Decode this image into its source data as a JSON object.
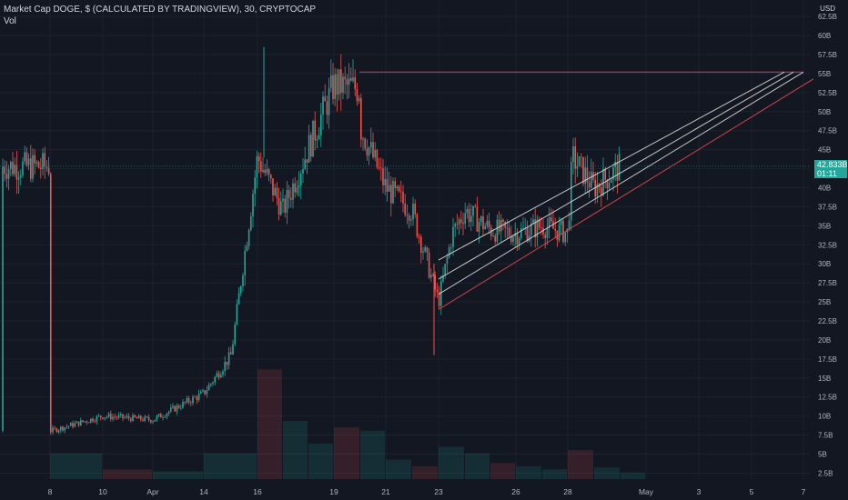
{
  "header": {
    "title": "Market Cap DOGE, $ (CALCULATED BY TRADINGVIEW), 30, CRYPTOCAP",
    "volume_label": "Vol",
    "currency": "USD"
  },
  "price_tag": {
    "value": "42.833B",
    "countdown": "01:11",
    "color": "#26a69a"
  },
  "colors": {
    "background": "#131722",
    "grid": "#1e222d",
    "up": "#26a69a",
    "down": "#ef5350",
    "trend_red": "#e04b4b",
    "trend_white": "#d8d8d8",
    "current_line": "#26a69a"
  },
  "chart_data": {
    "type": "candlestick",
    "y_unit": "B",
    "ylim": [
      0,
      63
    ],
    "y_ticks": [
      "2.5B",
      "5B",
      "7.5B",
      "10B",
      "12.5B",
      "15B",
      "17.5B",
      "20B",
      "22.5B",
      "25B",
      "27.5B",
      "30B",
      "32.5B",
      "35B",
      "37.5B",
      "40B",
      "42.5B",
      "45B",
      "47.5B",
      "50B",
      "52.5B",
      "55B",
      "57.5B",
      "60B",
      "62.5B"
    ],
    "x_ticks": [
      "8",
      "10",
      "Apr",
      "14",
      "16",
      "19",
      "21",
      "23",
      "26",
      "28",
      "May",
      "3",
      "5",
      "7"
    ],
    "price_path": [
      [
        "8",
        8.0
      ],
      [
        "10",
        10.0
      ],
      [
        "Apr",
        9.5
      ],
      [
        "14",
        13.0
      ],
      [
        "15",
        18.0
      ],
      [
        "16",
        44.0
      ],
      [
        "17",
        37.0
      ],
      [
        "19",
        53.5
      ],
      [
        "19.5",
        53.0
      ],
      [
        "20",
        48.0
      ],
      [
        "21",
        40.0
      ],
      [
        "22",
        37.0
      ],
      [
        "23",
        25.0
      ],
      [
        "23.5",
        34.0
      ],
      [
        "24",
        37.0
      ],
      [
        "25",
        34.5
      ],
      [
        "26",
        34.0
      ],
      [
        "27",
        35.0
      ],
      [
        "28",
        34.0
      ],
      [
        "28.2",
        44.0
      ],
      [
        "29",
        40.0
      ],
      [
        "30",
        42.8
      ]
    ],
    "spike_high": 58.5,
    "spike_low": 18.0,
    "current_value": 42.833,
    "volume": [
      [
        "8",
        4.0
      ],
      [
        "10",
        1.5
      ],
      [
        "Apr",
        1.2
      ],
      [
        "14",
        4.0
      ],
      [
        "16",
        17.0
      ],
      [
        "17",
        9.0
      ],
      [
        "18",
        5.5
      ],
      [
        "19",
        8.0
      ],
      [
        "20",
        7.5
      ],
      [
        "21",
        3.0
      ],
      [
        "22",
        2.0
      ],
      [
        "23",
        5.0
      ],
      [
        "24",
        4.0
      ],
      [
        "25",
        2.5
      ],
      [
        "26",
        2.0
      ],
      [
        "27",
        1.5
      ],
      [
        "28",
        4.5
      ],
      [
        "29",
        1.8
      ],
      [
        "30",
        1.0
      ]
    ],
    "trendlines": [
      {
        "kind": "horizontal-resistance",
        "color": "red",
        "x_from": "19.5",
        "x_to": "7",
        "y": 55.2
      },
      {
        "kind": "rising-support",
        "color": "red",
        "x_from": "23",
        "x_to": "7.5",
        "y_from": 24.0,
        "y_to": 54.3
      },
      {
        "kind": "channel",
        "color": "white",
        "x_from": "23",
        "x_to": "7",
        "y_from": 26.0,
        "y_to": 55.2
      },
      {
        "kind": "channel",
        "color": "white",
        "x_from": "23",
        "x_to": "6.7",
        "y_from": 28.0,
        "y_to": 55.2
      },
      {
        "kind": "channel",
        "color": "white",
        "x_from": "23",
        "x_to": "6.3",
        "y_from": 30.5,
        "y_to": 55.2
      }
    ]
  }
}
